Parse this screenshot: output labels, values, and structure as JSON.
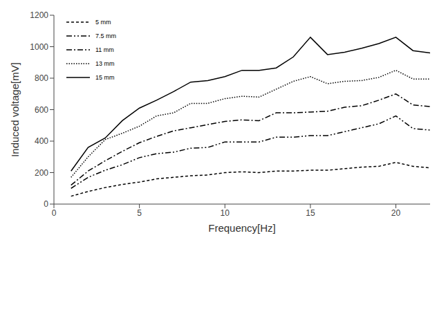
{
  "chart_data": {
    "type": "line",
    "x_label": "Frequency[Hz]",
    "y_label": "Induced voltage[mV]",
    "x": [
      1,
      2,
      3,
      4,
      5,
      6,
      7,
      8,
      9,
      10,
      11,
      12,
      13,
      14,
      15,
      16,
      17,
      18,
      19,
      20,
      21,
      22
    ],
    "xlim": [
      0,
      22
    ],
    "xticks": [
      0,
      5,
      10,
      15,
      20
    ],
    "ylim": [
      0,
      1200
    ],
    "yticks": [
      0,
      200,
      400,
      600,
      800,
      1000,
      1200
    ],
    "grid": false,
    "legend": "upper left",
    "series": [
      {
        "name": "5 mm",
        "color": "#000000",
        "line_style": "dashed",
        "values": [
          50,
          80,
          105,
          125,
          140,
          160,
          170,
          180,
          185,
          200,
          205,
          200,
          210,
          210,
          215,
          215,
          225,
          235,
          240,
          265,
          240,
          230
        ]
      },
      {
        "name": "7.5 mm",
        "color": "#000000",
        "line_style": "dashdotdot",
        "values": [
          100,
          170,
          215,
          250,
          295,
          320,
          330,
          355,
          360,
          395,
          395,
          395,
          425,
          425,
          435,
          435,
          460,
          485,
          510,
          560,
          480,
          470
        ]
      },
      {
        "name": "11 mm",
        "color": "#000000",
        "line_style": "dashdot",
        "values": [
          120,
          210,
          275,
          335,
          390,
          430,
          465,
          485,
          505,
          525,
          535,
          530,
          580,
          580,
          585,
          590,
          615,
          625,
          660,
          700,
          630,
          620
        ]
      },
      {
        "name": "13 mm",
        "color": "#000000",
        "line_style": "dotted",
        "values": [
          170,
          300,
          410,
          450,
          495,
          560,
          580,
          640,
          640,
          670,
          685,
          680,
          730,
          780,
          810,
          765,
          780,
          785,
          805,
          850,
          795,
          795
        ]
      },
      {
        "name": "15 mm",
        "color": "#000000",
        "line_style": "solid",
        "values": [
          210,
          360,
          420,
          530,
          610,
          660,
          715,
          775,
          785,
          810,
          850,
          850,
          865,
          935,
          1060,
          950,
          965,
          990,
          1020,
          1060,
          975,
          960
        ]
      }
    ]
  }
}
